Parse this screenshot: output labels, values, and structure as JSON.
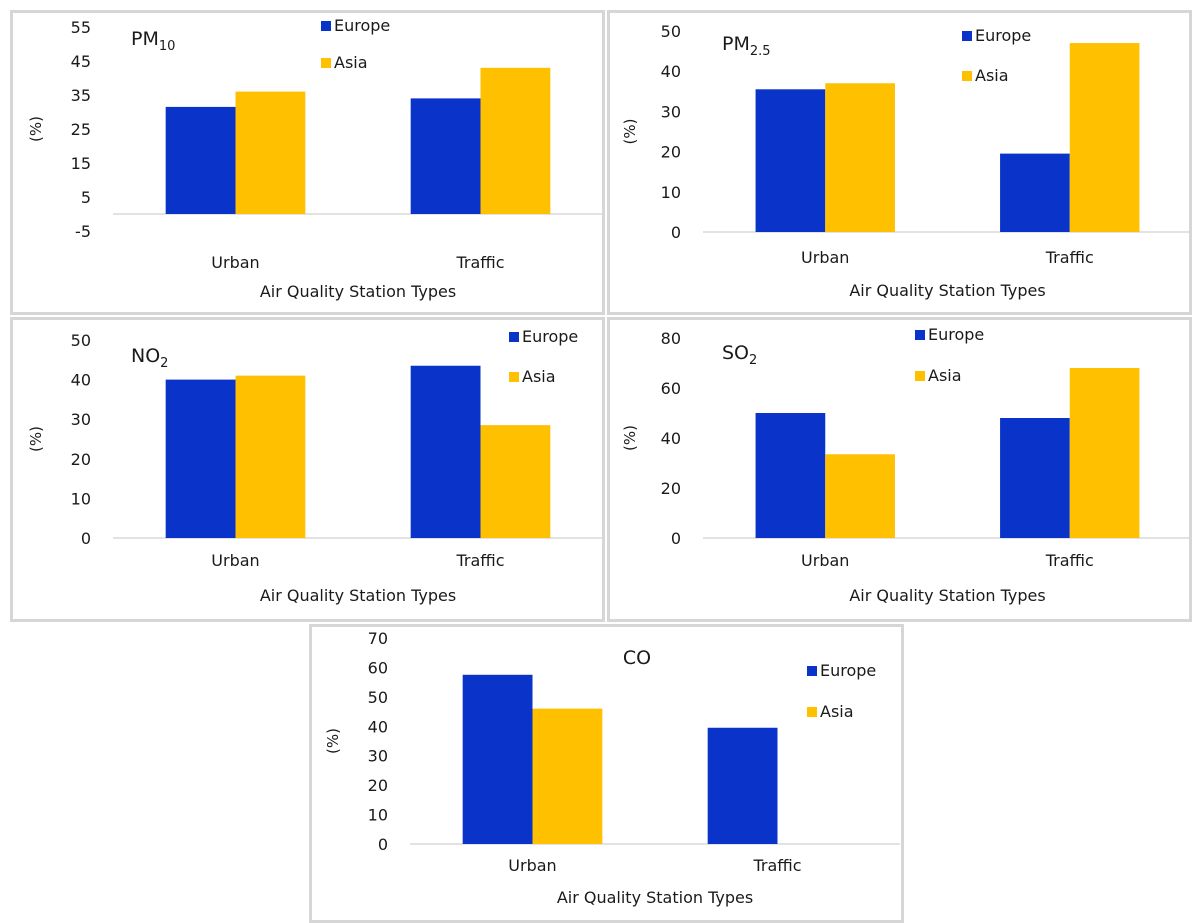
{
  "colors": {
    "europe": "#0a33c9",
    "asia": "#ffc000",
    "axis": "#d9d9d9",
    "panel_border": "#d6d6d6"
  },
  "chart_data": [
    {
      "type": "bar",
      "title": "PM",
      "title_sub": "10",
      "categories": [
        "Urban",
        "Traffic"
      ],
      "series": [
        {
          "name": "Europe",
          "values": [
            31.5,
            34
          ]
        },
        {
          "name": "Asia",
          "values": [
            36,
            43
          ]
        }
      ],
      "ylim": [
        -5,
        55
      ],
      "yticks": [
        55,
        45,
        35,
        25,
        15,
        5,
        -5
      ],
      "ylabel": "(%)",
      "xlabel": "Air Quality Station Types"
    },
    {
      "type": "bar",
      "title": "PM",
      "title_sub": "2.5",
      "categories": [
        "Urban",
        "Traffic"
      ],
      "series": [
        {
          "name": "Europe",
          "values": [
            35.5,
            19.5
          ]
        },
        {
          "name": "Asia",
          "values": [
            37,
            47
          ]
        }
      ],
      "ylim": [
        0,
        50
      ],
      "yticks": [
        50,
        40,
        30,
        20,
        10,
        0
      ],
      "ylabel": "(%)",
      "xlabel": "Air Quality Station Types"
    },
    {
      "type": "bar",
      "title": "NO",
      "title_sub": "2",
      "categories": [
        "Urban",
        "Traffic"
      ],
      "series": [
        {
          "name": "Europe",
          "values": [
            40,
            43.5
          ]
        },
        {
          "name": "Asia",
          "values": [
            41,
            28.5
          ]
        }
      ],
      "ylim": [
        0,
        50
      ],
      "yticks": [
        50,
        40,
        30,
        20,
        10,
        0
      ],
      "ylabel": "(%)",
      "xlabel": "Air Quality Station Types"
    },
    {
      "type": "bar",
      "title": "SO",
      "title_sub": "2",
      "categories": [
        "Urban",
        "Traffic"
      ],
      "series": [
        {
          "name": "Europe",
          "values": [
            50,
            48
          ]
        },
        {
          "name": "Asia",
          "values": [
            33.5,
            68
          ]
        }
      ],
      "ylim": [
        0,
        80
      ],
      "yticks": [
        80,
        60,
        40,
        20,
        0
      ],
      "ylabel": "(%)",
      "xlabel": "Air Quality Station Types"
    },
    {
      "type": "bar",
      "title": "CO",
      "title_sub": "",
      "categories": [
        "Urban",
        "Traffic"
      ],
      "series": [
        {
          "name": "Europe",
          "values": [
            57.5,
            39.5
          ]
        },
        {
          "name": "Asia",
          "values": [
            46,
            0
          ]
        }
      ],
      "ylim": [
        0,
        70
      ],
      "yticks": [
        70,
        60,
        50,
        40,
        30,
        20,
        10,
        0
      ],
      "ylabel": "(%)",
      "xlabel": "Air Quality Station Types"
    }
  ]
}
